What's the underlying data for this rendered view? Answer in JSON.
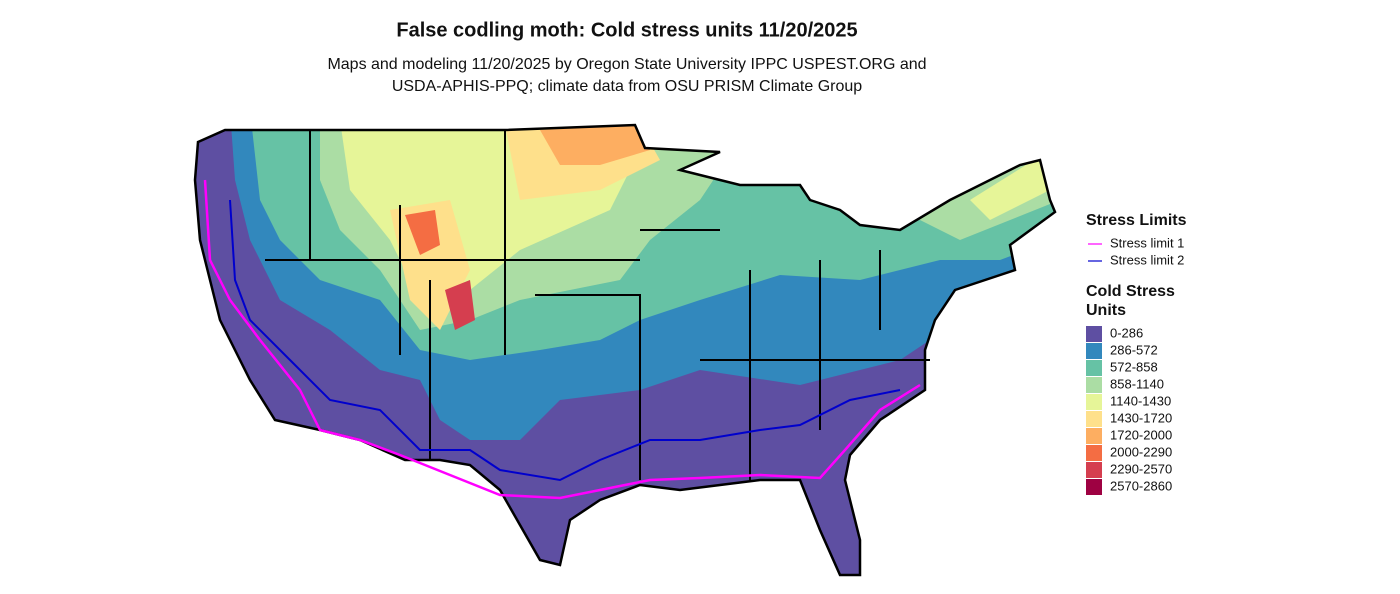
{
  "title": "False codling moth: Cold stress units 11/20/2025",
  "subtitle": [
    "Maps and modeling 11/20/2025 by Oregon State University IPPC USPEST.ORG and",
    "USDA-APHIS-PPQ; climate data from OSU PRISM Climate Group"
  ],
  "legend": {
    "limits": {
      "title": "Stress Limits",
      "items": [
        {
          "label": "Stress limit 1",
          "color": "#ff00ff"
        },
        {
          "label": "Stress limit 2",
          "color": "#0000cd"
        }
      ]
    },
    "units": {
      "title": [
        "Cold Stress",
        "Units"
      ],
      "items": [
        {
          "label": "0-286",
          "color": "#5e4fa2"
        },
        {
          "label": "286-572",
          "color": "#3288bd"
        },
        {
          "label": "572-858",
          "color": "#66c2a5"
        },
        {
          "label": "858-1140",
          "color": "#abdda4"
        },
        {
          "label": "1140-1430",
          "color": "#e6f598"
        },
        {
          "label": "1430-1720",
          "color": "#fee08b"
        },
        {
          "label": "1720-2000",
          "color": "#fdae61"
        },
        {
          "label": "2000-2290",
          "color": "#f46d43"
        },
        {
          "label": "2290-2570",
          "color": "#d53e4f"
        },
        {
          "label": "2570-2860",
          "color": "#9e0142"
        }
      ]
    }
  }
}
